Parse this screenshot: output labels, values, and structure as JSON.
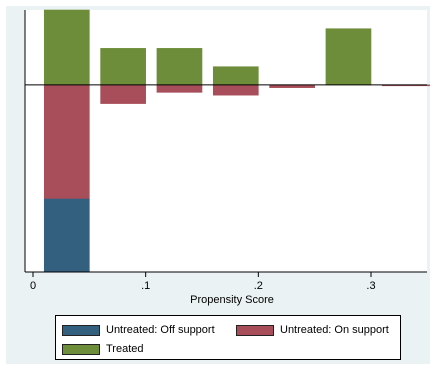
{
  "chart_data": {
    "type": "bar",
    "subtype": "mirrored-stacked-histogram",
    "xlabel": "Propensity Score",
    "ylabel": "",
    "xlim": [
      0,
      0.355
    ],
    "ylim": [
      -1,
      0.4
    ],
    "xticks": [
      {
        "value": 0,
        "label": "0"
      },
      {
        "value": 0.1,
        "label": ".1"
      },
      {
        "value": 0.2,
        "label": ".2"
      },
      {
        "value": 0.3,
        "label": ".3"
      }
    ],
    "legend_position": "bottom",
    "bins": [
      {
        "start": 0.01,
        "end": 0.05
      },
      {
        "start": 0.06,
        "end": 0.1
      },
      {
        "start": 0.11,
        "end": 0.15
      },
      {
        "start": 0.16,
        "end": 0.2
      },
      {
        "start": 0.21,
        "end": 0.25
      },
      {
        "start": 0.26,
        "end": 0.3
      },
      {
        "start": 0.31,
        "end": 0.355
      }
    ],
    "series": [
      {
        "name": "Treated",
        "side": "above",
        "color": "#6e8d3a",
        "values": [
          0.4,
          0.195,
          0.195,
          0.097,
          0.0,
          0.3,
          0.0
        ]
      },
      {
        "name": "Untreated: On support",
        "side": "below",
        "color": "#a84e5a",
        "values": [
          0.61,
          0.1,
          0.04,
          0.055,
          0.015,
          0.0,
          0.005
        ]
      },
      {
        "name": "Untreated: Off support",
        "side": "below",
        "color": "#34607f",
        "values": [
          0.39,
          0.0,
          0.0,
          0.0,
          0.0,
          0.0,
          0.0
        ]
      }
    ]
  }
}
